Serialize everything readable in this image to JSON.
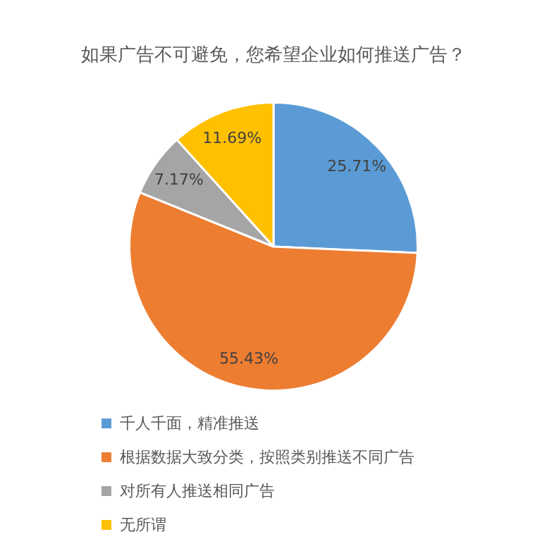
{
  "chart_data": {
    "type": "pie",
    "title": "如果广告不可避免，您希望企业如何推送广告？",
    "categories": [
      "千人千面，精准推送",
      "根据数据大致分类，按照类别推送不同广告",
      "对所有人推送相同广告",
      "无所谓"
    ],
    "values": [
      25.71,
      55.43,
      7.17,
      11.69
    ],
    "colors": [
      "#5b9bd5",
      "#ed7d31",
      "#a5a5a5",
      "#ffc000"
    ],
    "value_labels": [
      "25.71%",
      "55.43%",
      "7.17%",
      "11.69%"
    ],
    "legend": "bottom"
  }
}
